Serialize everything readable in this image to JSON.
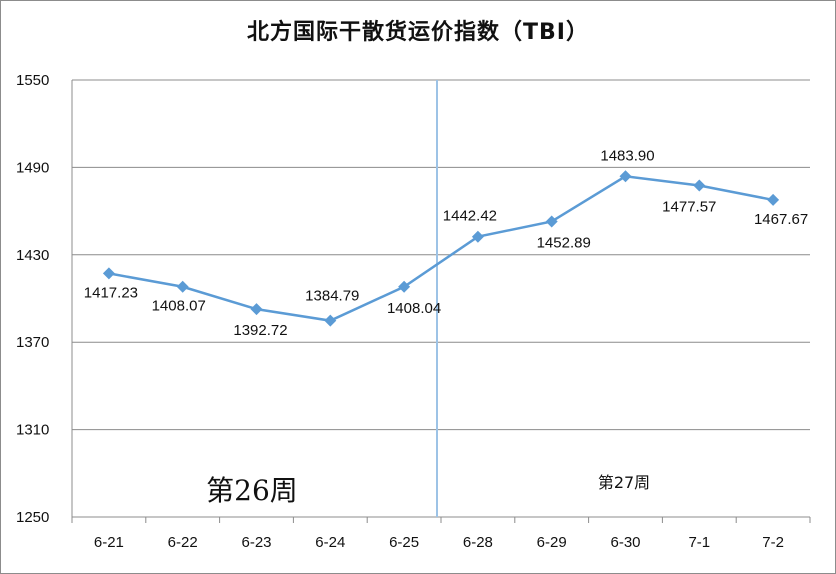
{
  "chart_data": {
    "type": "line",
    "title": "北方国际干散货运价指数（TBI）",
    "categories": [
      "6-21",
      "6-22",
      "6-23",
      "6-24",
      "6-25",
      "6-28",
      "6-29",
      "6-30",
      "7-1",
      "7-2"
    ],
    "series": [
      {
        "values": [
          1417.23,
          1408.07,
          1392.72,
          1384.79,
          1408.04,
          1442.42,
          1452.89,
          1483.9,
          1477.57,
          1467.67
        ],
        "labels": [
          "1417.23",
          "1408.07",
          "1392.72",
          "1384.79",
          "1408.04",
          "1442.42",
          "1452.89",
          "1483.90",
          "1477.57",
          "1467.67"
        ],
        "color": "#5b9bd5"
      }
    ],
    "ylim": [
      1250,
      1550
    ],
    "yticks": [
      "1250",
      "1310",
      "1370",
      "1430",
      "1490",
      "1550"
    ],
    "grid": true,
    "annotations": {
      "week_a": "第26周",
      "week_b": "第27周"
    },
    "divider_color": "#9dc3e6"
  }
}
